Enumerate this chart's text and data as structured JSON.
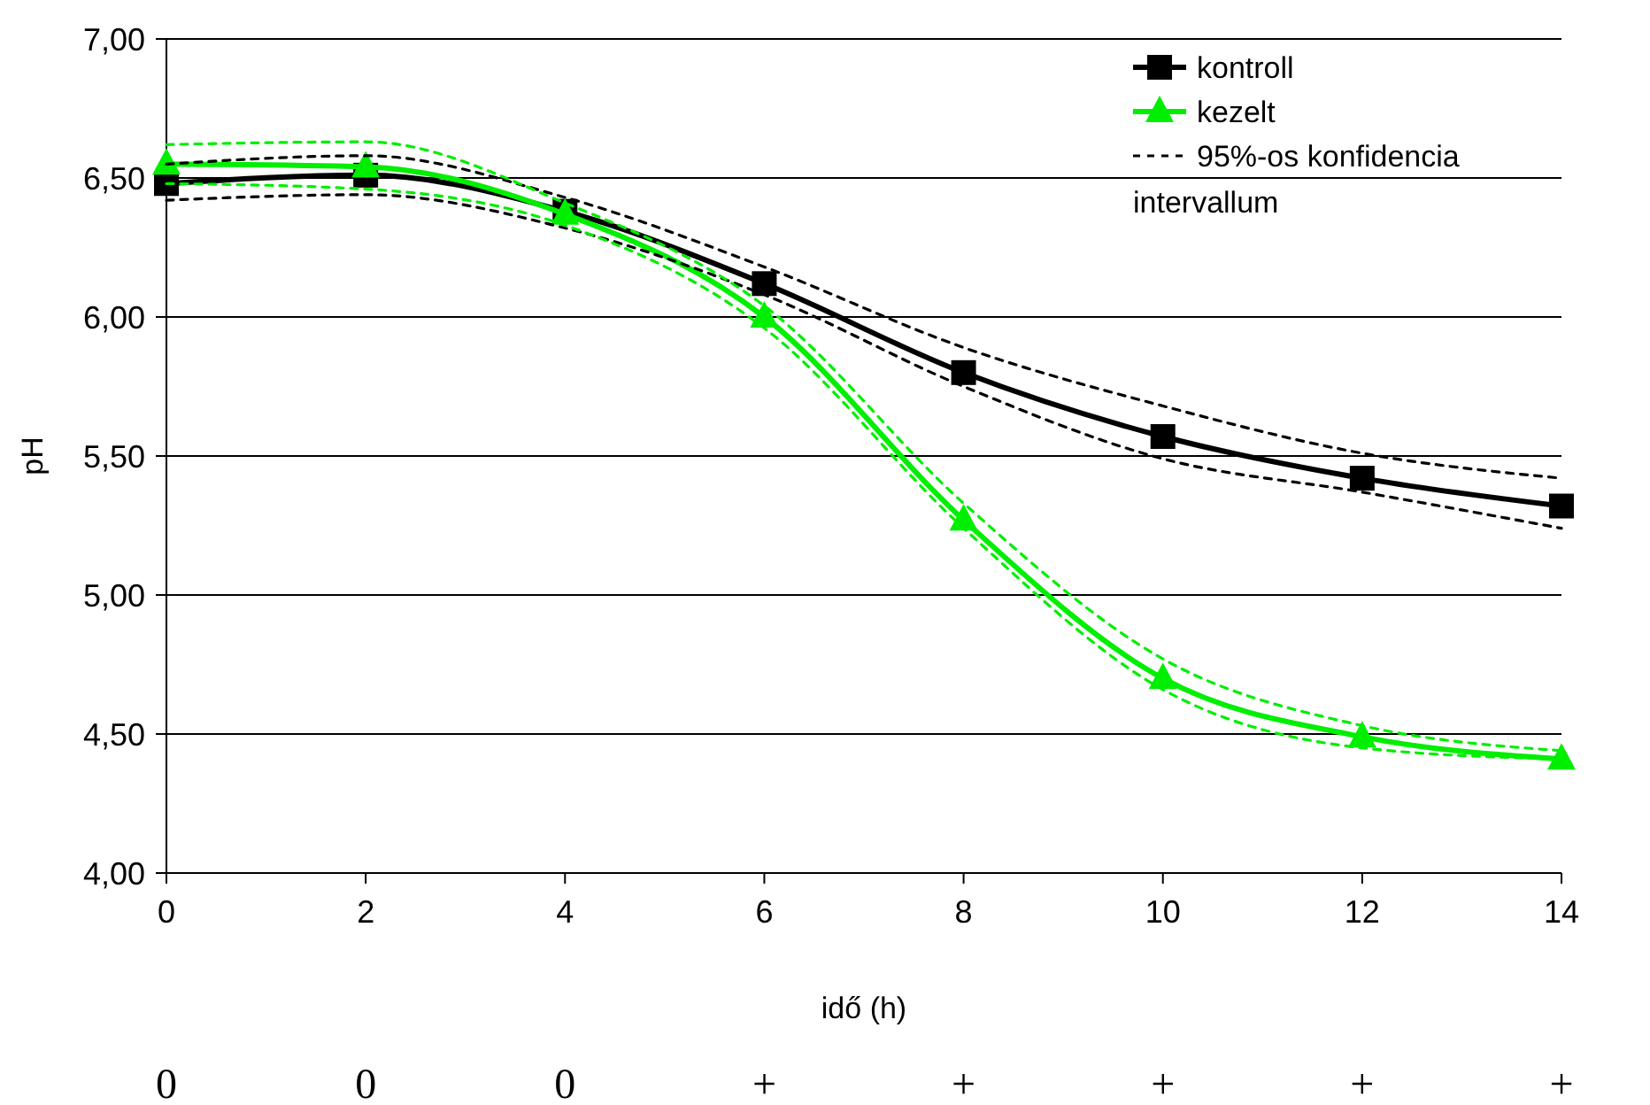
{
  "chart_data": {
    "type": "line",
    "xlabel": "idő (h)",
    "ylabel": "pH",
    "x": [
      0,
      2,
      4,
      6,
      8,
      10,
      12,
      14
    ],
    "xlim": [
      0,
      14
    ],
    "xticks": [
      0,
      2,
      4,
      6,
      8,
      10,
      12,
      14
    ],
    "ylim": [
      4,
      7
    ],
    "yticks": [
      {
        "value": 4,
        "label": "4,00"
      },
      {
        "value": 4.5,
        "label": "4,50"
      },
      {
        "value": 5,
        "label": "5,00"
      },
      {
        "value": 5.5,
        "label": "5,50"
      },
      {
        "value": 6,
        "label": "6,00"
      },
      {
        "value": 6.5,
        "label": "6,50"
      },
      {
        "value": 7,
        "label": "7,00"
      }
    ],
    "grid": "y",
    "legend": "top right",
    "series": [
      {
        "name": "kontroll",
        "color": "#000000",
        "marker": "square",
        "line_style": "solid",
        "values": [
          6.48,
          6.51,
          6.38,
          6.12,
          5.8,
          5.57,
          5.42,
          5.32
        ]
      },
      {
        "name": "kezelt",
        "color": "#00ee00",
        "marker": "triangle",
        "line_style": "solid",
        "values": [
          6.55,
          6.54,
          6.37,
          6.0,
          5.27,
          4.7,
          4.49,
          4.41
        ]
      },
      {
        "name": "95%-os konfidencia intervallum",
        "color": "#000000",
        "marker": "none",
        "line_style": "dashed",
        "values": [
          6.55,
          6.58,
          6.43,
          6.18,
          5.89,
          5.68,
          5.51,
          5.42
        ]
      },
      {
        "color": "#000000",
        "marker": "none",
        "line_style": "dashed",
        "values": [
          6.42,
          6.44,
          6.32,
          6.08,
          5.75,
          5.49,
          5.37,
          5.24
        ]
      },
      {
        "color": "#00ee00",
        "marker": "none",
        "line_style": "dashed",
        "values": [
          6.62,
          6.63,
          6.41,
          6.04,
          5.33,
          4.77,
          4.53,
          4.44
        ]
      },
      {
        "color": "#00ee00",
        "marker": "none",
        "line_style": "dashed",
        "values": [
          6.48,
          6.46,
          6.33,
          5.96,
          5.24,
          4.66,
          4.45,
          4.41
        ]
      }
    ],
    "annotations": [
      "0",
      "0",
      "0",
      "+",
      "+",
      "+",
      "+",
      "+"
    ]
  }
}
